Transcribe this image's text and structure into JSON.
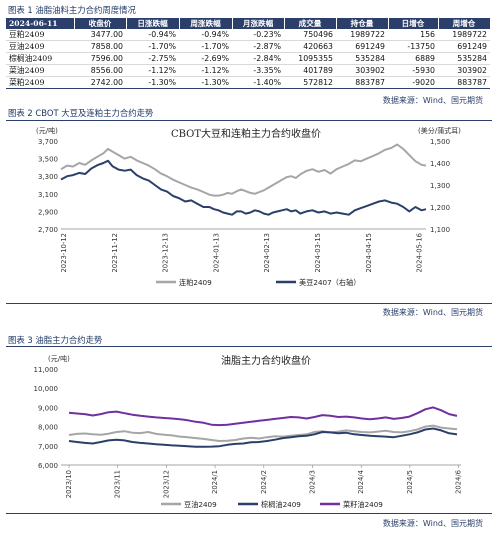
{
  "fig1": {
    "title": "图表 1 油脂油料主力合约周度情况",
    "headers": [
      "2024-06-11",
      "收盘价",
      "日涨跌幅",
      "周涨跌幅",
      "月涨跌幅",
      "成交量",
      "持仓量",
      "日增仓",
      "周增仓"
    ],
    "rows": [
      [
        "豆粕2409",
        "3477.00",
        "-0.94%",
        "-0.94%",
        "-0.23%",
        "750496",
        "1989722",
        "156",
        "1989722"
      ],
      [
        "豆油2409",
        "7858.00",
        "-1.70%",
        "-1.70%",
        "-2.87%",
        "420663",
        "691249",
        "-13750",
        "691249"
      ],
      [
        "棕榈油2409",
        "7596.00",
        "-2.75%",
        "-2.69%",
        "-2.84%",
        "1095355",
        "535284",
        "6889",
        "535284"
      ],
      [
        "菜油2409",
        "8556.00",
        "-1.12%",
        "-1.12%",
        "-3.35%",
        "401789",
        "303902",
        "-5930",
        "303902"
      ],
      [
        "菜粕2409",
        "2742.00",
        "-1.30%",
        "-1.30%",
        "-1.40%",
        "572812",
        "883787",
        "-9020",
        "883787"
      ]
    ],
    "source": "数据来源：Wind、国元期货"
  },
  "fig2": {
    "title": "图表 2 CBOT 大豆及连粕主力合约走势",
    "source": "数据来源：Wind、国元期货",
    "chart_data": {
      "type": "line",
      "title": "CBOT大豆和连粕主力合约收盘价",
      "ylabel_left": "(元/吨)",
      "ylabel_right": "(美分/蒲式耳)",
      "ylim_left": [
        2700,
        3700
      ],
      "yticks_left": [
        "2,700",
        "2,900",
        "3,100",
        "3,300",
        "3,500",
        "3,700"
      ],
      "ylim_right": [
        1100,
        1500
      ],
      "yticks_right": [
        "1,100",
        "1,200",
        "1,300",
        "1,400",
        "1,500"
      ],
      "x_ticks": [
        "2023-10-12",
        "2023-11-12",
        "2023-12-13",
        "2024-01-13",
        "2024-02-13",
        "2024-03-15",
        "2024-04-15",
        "2024-05-16"
      ],
      "series": [
        {
          "name": "连粕2409",
          "axis": "left",
          "color": "#a6a6a6",
          "x_pos": [
            0,
            4,
            8,
            12,
            16,
            20,
            24,
            28,
            31,
            34,
            38,
            42,
            46,
            50,
            54,
            58,
            62,
            66,
            70,
            74,
            78,
            82,
            86,
            90,
            94,
            98,
            101,
            104,
            107,
            110,
            113,
            116,
            119,
            122,
            125,
            128,
            131,
            134,
            137,
            140,
            143,
            146,
            149,
            152,
            155,
            158,
            162,
            166,
            170,
            174,
            178,
            182,
            186,
            190,
            194,
            198,
            202,
            206,
            210,
            214,
            218,
            222,
            226,
            230,
            234,
            238,
            241
          ],
          "values": [
            3380,
            3420,
            3410,
            3450,
            3430,
            3480,
            3520,
            3560,
            3610,
            3580,
            3540,
            3500,
            3520,
            3480,
            3450,
            3420,
            3380,
            3330,
            3300,
            3260,
            3230,
            3200,
            3170,
            3150,
            3120,
            3090,
            3080,
            3080,
            3090,
            3110,
            3100,
            3130,
            3150,
            3130,
            3110,
            3100,
            3120,
            3140,
            3170,
            3200,
            3230,
            3260,
            3290,
            3300,
            3280,
            3320,
            3360,
            3380,
            3350,
            3370,
            3330,
            3380,
            3410,
            3440,
            3480,
            3470,
            3500,
            3530,
            3560,
            3600,
            3620,
            3660,
            3610,
            3540,
            3470,
            3430,
            3420
          ]
        },
        {
          "name": "美豆2407（右轴）",
          "axis": "right",
          "color": "#2b3f6a",
          "x_pos": [
            0,
            4,
            8,
            12,
            16,
            20,
            24,
            28,
            31,
            34,
            38,
            42,
            46,
            50,
            54,
            58,
            62,
            66,
            70,
            74,
            78,
            82,
            86,
            90,
            94,
            98,
            101,
            104,
            107,
            110,
            113,
            116,
            119,
            122,
            125,
            128,
            131,
            134,
            137,
            140,
            143,
            146,
            149,
            152,
            155,
            158,
            162,
            166,
            170,
            174,
            178,
            182,
            186,
            190,
            194,
            198,
            202,
            206,
            210,
            214,
            218,
            222,
            226,
            230,
            234,
            238,
            241
          ],
          "values": [
            1325,
            1340,
            1345,
            1355,
            1350,
            1375,
            1390,
            1400,
            1410,
            1385,
            1370,
            1365,
            1370,
            1345,
            1330,
            1320,
            1300,
            1280,
            1270,
            1250,
            1240,
            1225,
            1230,
            1215,
            1200,
            1200,
            1190,
            1185,
            1175,
            1170,
            1165,
            1180,
            1180,
            1170,
            1175,
            1185,
            1180,
            1170,
            1165,
            1175,
            1180,
            1185,
            1190,
            1180,
            1185,
            1170,
            1180,
            1185,
            1175,
            1180,
            1170,
            1175,
            1170,
            1165,
            1185,
            1195,
            1205,
            1215,
            1225,
            1230,
            1220,
            1215,
            1200,
            1180,
            1200,
            1185,
            1190
          ]
        }
      ]
    }
  },
  "fig3": {
    "title": "图表 3 油脂主力合约走势",
    "source": "数据来源：Wind、国元期货",
    "chart_data": {
      "type": "line",
      "title": "油脂主力合约收盘价",
      "ylabel": "(元/吨)",
      "ylim": [
        6000,
        11000
      ],
      "yticks": [
        "6,000",
        "7,000",
        "8,000",
        "9,000",
        "10,000",
        "11,000"
      ],
      "x_ticks": [
        "2023/10",
        "2023/11",
        "2023/12",
        "2024/1",
        "2024/2",
        "2024/3",
        "2024/4",
        "2024/5",
        "2024/6"
      ],
      "series": [
        {
          "name": "豆油2409",
          "color": "#a6a6a6",
          "x_pos": [
            0,
            5,
            10,
            15,
            20,
            25,
            30,
            35,
            40,
            45,
            50,
            55,
            60,
            65,
            70,
            75,
            80,
            85,
            90,
            95,
            100,
            105,
            110,
            115,
            120,
            125,
            130,
            135,
            140,
            145,
            150,
            155,
            160,
            165,
            170,
            175,
            180,
            185,
            190,
            195,
            200,
            205,
            210,
            215,
            220,
            225,
            230,
            235,
            240,
            245
          ],
          "values": [
            7560,
            7620,
            7640,
            7600,
            7580,
            7630,
            7720,
            7760,
            7680,
            7660,
            7720,
            7620,
            7580,
            7540,
            7480,
            7450,
            7400,
            7360,
            7300,
            7250,
            7260,
            7300,
            7380,
            7420,
            7380,
            7450,
            7500,
            7480,
            7520,
            7560,
            7600,
            7720,
            7760,
            7700,
            7740,
            7800,
            7760,
            7720,
            7700,
            7740,
            7780,
            7720,
            7700,
            7760,
            7850,
            8000,
            8050,
            7950,
            7900,
            7858
          ]
        },
        {
          "name": "棕榈油2409",
          "color": "#2b3f6a",
          "x_pos": [
            0,
            5,
            10,
            15,
            20,
            25,
            30,
            35,
            40,
            45,
            50,
            55,
            60,
            65,
            70,
            75,
            80,
            85,
            90,
            95,
            100,
            105,
            110,
            115,
            120,
            125,
            130,
            135,
            140,
            145,
            150,
            155,
            160,
            165,
            170,
            175,
            180,
            185,
            190,
            195,
            200,
            205,
            210,
            215,
            220,
            225,
            230,
            235,
            240,
            245
          ],
          "values": [
            7250,
            7200,
            7150,
            7120,
            7200,
            7280,
            7320,
            7280,
            7200,
            7150,
            7120,
            7080,
            7050,
            7020,
            7000,
            6980,
            6950,
            6950,
            6960,
            6980,
            7050,
            7100,
            7120,
            7180,
            7200,
            7250,
            7320,
            7400,
            7450,
            7500,
            7520,
            7600,
            7720,
            7700,
            7650,
            7680,
            7600,
            7560,
            7520,
            7500,
            7480,
            7450,
            7520,
            7600,
            7700,
            7850,
            7900,
            7800,
            7650,
            7596
          ]
        },
        {
          "name": "菜籽油2409",
          "color": "#7030a0",
          "x_pos": [
            0,
            5,
            10,
            15,
            20,
            25,
            30,
            35,
            40,
            45,
            50,
            55,
            60,
            65,
            70,
            75,
            80,
            85,
            90,
            95,
            100,
            105,
            110,
            115,
            120,
            125,
            130,
            135,
            140,
            145,
            150,
            155,
            160,
            165,
            170,
            175,
            180,
            185,
            190,
            195,
            200,
            205,
            210,
            215,
            220,
            225,
            230,
            235,
            240,
            245
          ],
          "values": [
            8720,
            8680,
            8650,
            8580,
            8650,
            8750,
            8780,
            8700,
            8620,
            8560,
            8520,
            8480,
            8450,
            8420,
            8380,
            8330,
            8250,
            8200,
            8100,
            8080,
            8100,
            8150,
            8200,
            8250,
            8300,
            8350,
            8400,
            8450,
            8500,
            8480,
            8420,
            8500,
            8600,
            8560,
            8500,
            8520,
            8480,
            8420,
            8380,
            8420,
            8480,
            8400,
            8450,
            8520,
            8700,
            8900,
            9000,
            8850,
            8650,
            8556
          ]
        }
      ]
    }
  }
}
